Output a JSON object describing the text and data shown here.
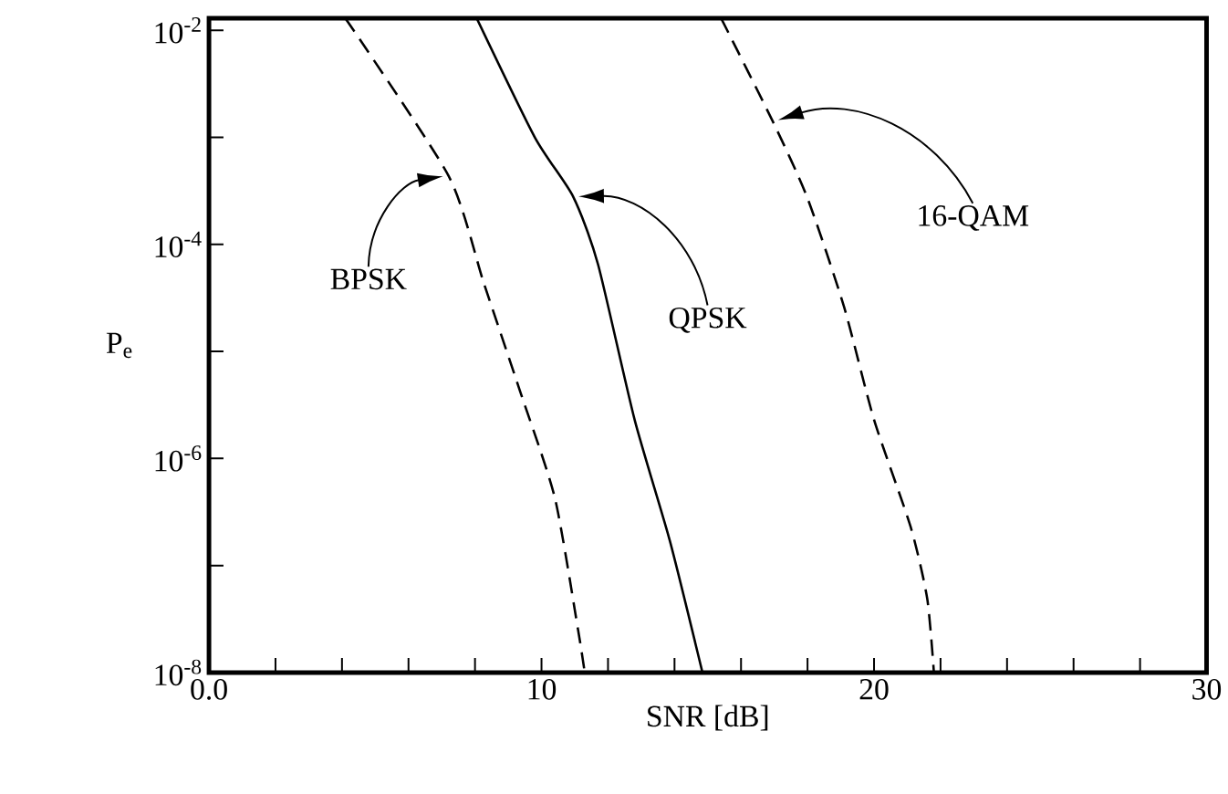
{
  "chart_data": {
    "type": "line",
    "xlabel": "SNR [dB]",
    "ylabel": "P$_{e}$",
    "log": "y",
    "grid": false,
    "legend": false,
    "marker": "none",
    "xlim": [
      0,
      30
    ],
    "xticks": [
      {
        "value": 0,
        "label": "0.0"
      },
      {
        "value": 2,
        "label": null
      },
      {
        "value": 4,
        "label": null
      },
      {
        "value": 6,
        "label": null
      },
      {
        "value": 8,
        "label": null
      },
      10,
      {
        "value": 12,
        "label": null
      },
      {
        "value": 14,
        "label": null
      },
      {
        "value": 16,
        "label": null
      },
      {
        "value": 18,
        "label": null
      },
      20,
      {
        "value": 22,
        "label": null
      },
      {
        "value": 24,
        "label": null
      },
      {
        "value": 26,
        "label": null
      },
      {
        "value": 28,
        "label": null
      },
      30
    ],
    "ylim": [
      1e-08,
      0.013
    ],
    "yticks": [
      {
        "value": 1e-08,
        "label": "10$^{-8}$"
      },
      {
        "value": 1e-07,
        "label": null
      },
      {
        "value": 1e-06,
        "label": "10$^{-6}$"
      },
      {
        "value": 1e-05,
        "label": null
      },
      {
        "value": 0.0001,
        "label": "10$^{-4}$"
      },
      {
        "value": 0.001,
        "label": null
      },
      {
        "value": 0.01,
        "label": "10$^{-2}$"
      }
    ],
    "series": [
      {
        "name": "BPSK",
        "color": "#000000",
        "line_style": "dashed",
        "x": [
          4.1,
          7.2,
          8.26,
          9.35,
          10.4,
          11.1,
          11.3
        ],
        "values": [
          0.013,
          0.00044,
          4.4e-05,
          4.3e-06,
          4.3e-07,
          2.5e-08,
          1e-08
        ]
      },
      {
        "name": "QPSK",
        "color": "#000000",
        "line_style": "solid",
        "x": [
          8.05,
          9.8,
          10.95,
          11.7,
          12.8,
          13.86,
          14.84
        ],
        "values": [
          0.013,
          0.001,
          0.00028,
          6.5e-05,
          2.3e-06,
          1.7e-07,
          1e-08
        ]
      },
      {
        "name": "16-QAM",
        "color": "#000000",
        "line_style": "dashed",
        "x": [
          15.4,
          16.96,
          18.0,
          19.1,
          20.0,
          21.1,
          21.6,
          21.8
        ],
        "values": [
          0.013,
          0.0014,
          0.00027,
          2.6e-05,
          2.3e-06,
          2.3e-07,
          4.9e-08,
          1e-08
        ]
      }
    ]
  }
}
